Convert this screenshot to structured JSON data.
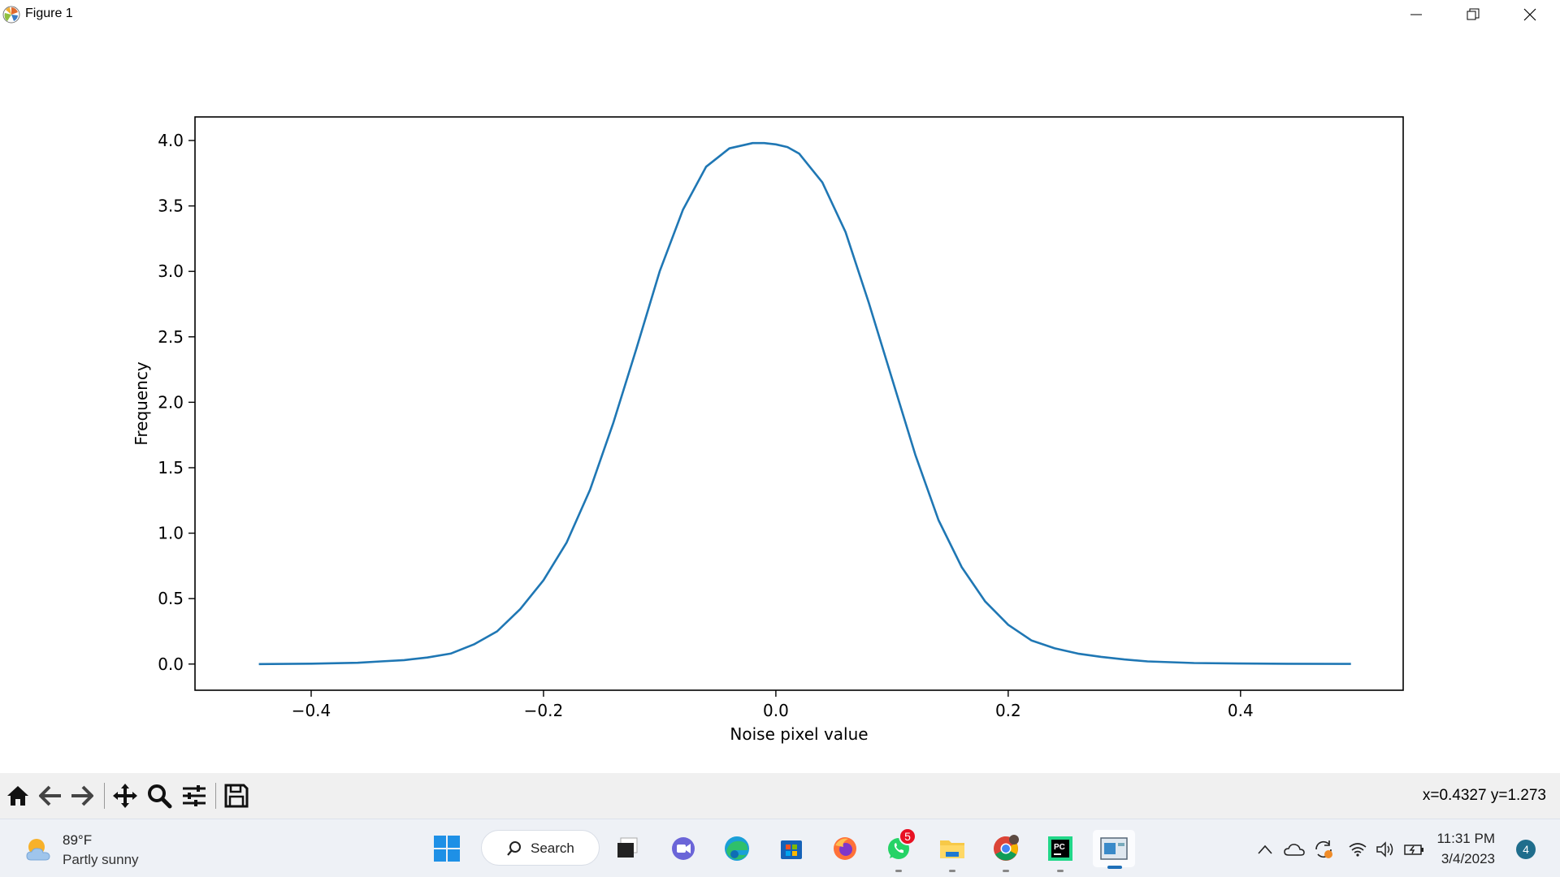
{
  "window": {
    "title": "Figure 1"
  },
  "toolbar": {
    "buttons": [
      "home-icon",
      "back-icon",
      "forward-icon",
      "pan-icon",
      "zoom-icon",
      "configure-subplots-icon",
      "save-icon"
    ],
    "coords": "x=0.4327 y=1.273"
  },
  "chart_data": {
    "type": "line",
    "title": "",
    "xlabel": "Noise pixel value",
    "ylabel": "Frequency",
    "xlim": [
      -0.5,
      0.54
    ],
    "ylim": [
      -0.2,
      4.18
    ],
    "xticks": [
      -0.4,
      -0.2,
      0.0,
      0.2,
      0.4
    ],
    "xtick_labels": [
      "−0.4",
      "−0.2",
      "0.0",
      "0.2",
      "0.4"
    ],
    "yticks": [
      0.0,
      0.5,
      1.0,
      1.5,
      2.0,
      2.5,
      3.0,
      3.5,
      4.0
    ],
    "ytick_labels": [
      "0.0",
      "0.5",
      "1.0",
      "1.5",
      "2.0",
      "2.5",
      "3.0",
      "3.5",
      "4.0"
    ],
    "grid": false,
    "color": "#1f77b4",
    "series": [
      {
        "x": [
          -0.445,
          -0.4,
          -0.36,
          -0.34,
          -0.32,
          -0.3,
          -0.28,
          -0.26,
          -0.24,
          -0.22,
          -0.2,
          -0.18,
          -0.16,
          -0.14,
          -0.12,
          -0.1,
          -0.08,
          -0.06,
          -0.04,
          -0.02,
          -0.01,
          0.0,
          0.01,
          0.02,
          0.04,
          0.06,
          0.08,
          0.1,
          0.12,
          0.14,
          0.16,
          0.18,
          0.2,
          0.22,
          0.24,
          0.26,
          0.28,
          0.3,
          0.32,
          0.36,
          0.4,
          0.44,
          0.495
        ],
        "y": [
          0.0,
          0.003,
          0.01,
          0.02,
          0.03,
          0.05,
          0.08,
          0.15,
          0.25,
          0.42,
          0.64,
          0.93,
          1.33,
          1.84,
          2.41,
          3.0,
          3.47,
          3.8,
          3.94,
          3.98,
          3.98,
          3.97,
          3.95,
          3.9,
          3.68,
          3.3,
          2.76,
          2.18,
          1.6,
          1.1,
          0.74,
          0.48,
          0.3,
          0.18,
          0.12,
          0.08,
          0.055,
          0.035,
          0.02,
          0.008,
          0.004,
          0.002,
          0.001
        ]
      }
    ]
  },
  "taskbar": {
    "weather": {
      "temp": "89°F",
      "desc": "Partly sunny"
    },
    "search_label": "Search",
    "whatsapp_badge": "5",
    "clock": {
      "time": "11:31 PM",
      "date": "3/4/2023"
    },
    "notifications": "4"
  }
}
